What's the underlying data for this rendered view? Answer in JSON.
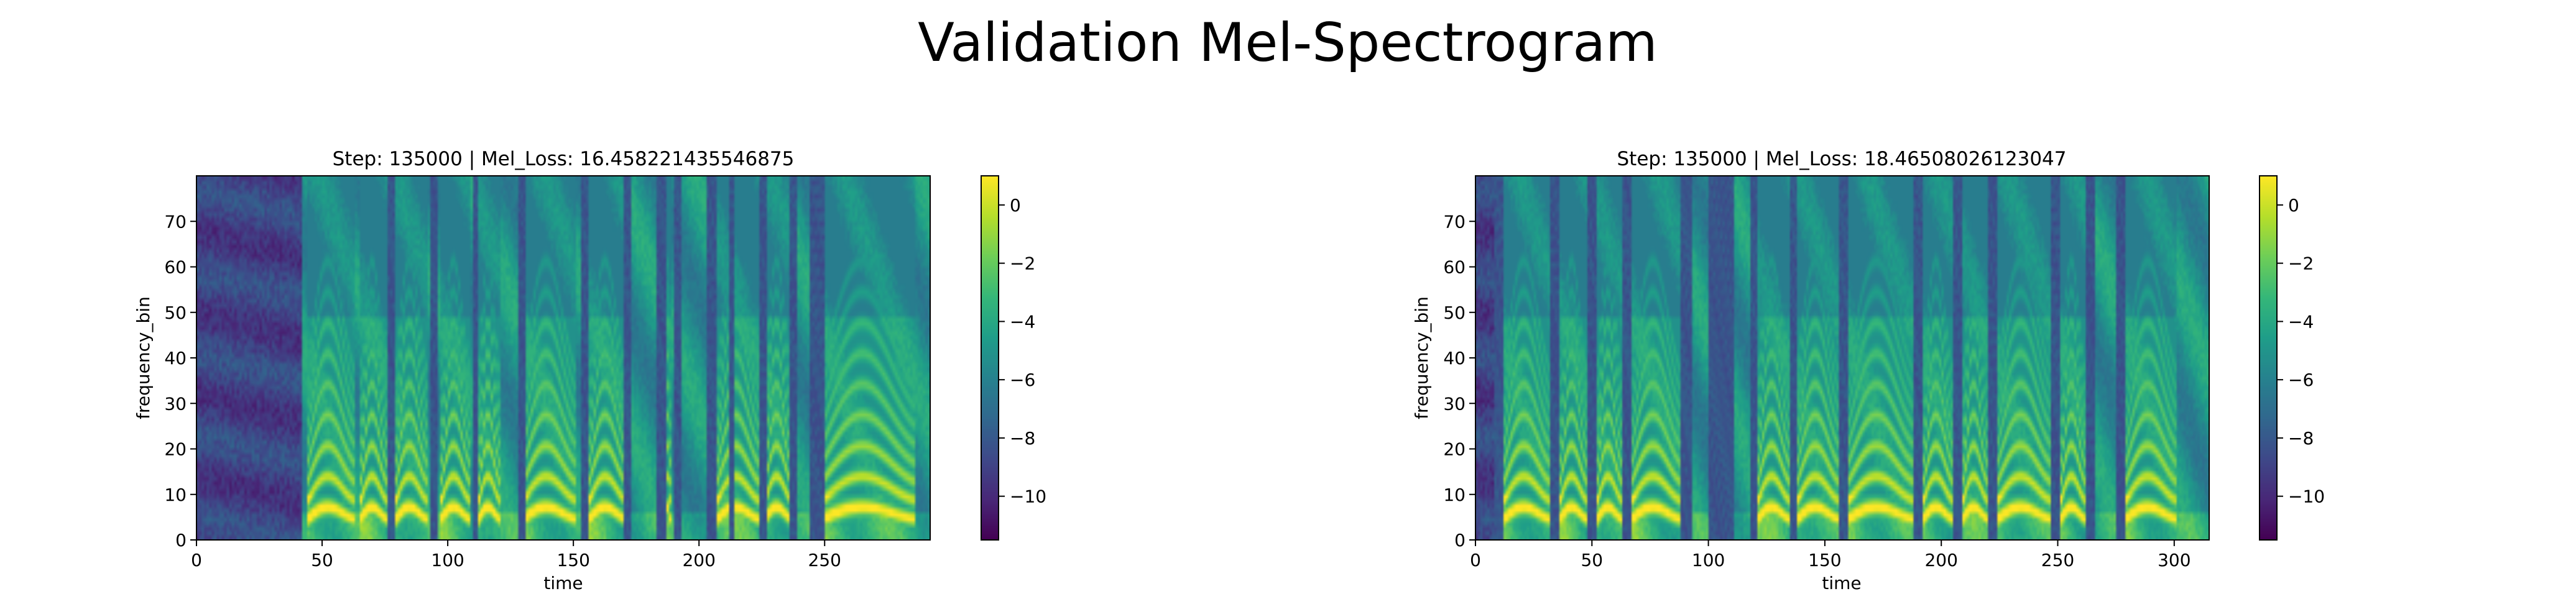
{
  "suptitle": "Validation Mel-Spectrogram",
  "colormap": "viridis",
  "colormap_stops": [
    "#440154",
    "#482878",
    "#3e4989",
    "#31688e",
    "#26828e",
    "#1f9e89",
    "#35b779",
    "#6ece58",
    "#b5de2b",
    "#fde725"
  ],
  "chart_data": [
    {
      "type": "heatmap",
      "title": "Step: 135000 | Mel_Loss: 16.458221435546875",
      "xlabel": "time",
      "ylabel": "frequency_bin",
      "xlim": [
        0,
        292
      ],
      "ylim": [
        0,
        80
      ],
      "xticks": [
        0,
        50,
        100,
        150,
        200,
        250
      ],
      "yticks": [
        0,
        10,
        20,
        30,
        40,
        50,
        60,
        70
      ],
      "colorbar": {
        "range": [
          -11.5,
          1
        ],
        "ticks": [
          0,
          -2,
          -4,
          -6,
          -8,
          -10
        ]
      },
      "silence_end": 42,
      "gaps": [
        [
          76,
          78
        ],
        [
          93,
          95
        ],
        [
          110,
          111
        ],
        [
          128,
          130
        ],
        [
          153,
          155
        ],
        [
          170,
          172
        ],
        [
          183,
          186
        ],
        [
          190,
          192
        ],
        [
          203,
          206
        ],
        [
          212,
          213
        ],
        [
          224,
          226
        ],
        [
          236,
          238
        ],
        [
          244,
          249
        ]
      ],
      "voiced": [
        [
          44,
          62
        ],
        [
          65,
          75
        ],
        [
          79,
          91
        ],
        [
          97,
          108
        ],
        [
          112,
          120
        ],
        [
          130,
          150
        ],
        [
          156,
          170
        ],
        [
          186,
          188
        ],
        [
          207,
          223
        ],
        [
          226,
          236
        ],
        [
          249,
          285
        ]
      ]
    },
    {
      "type": "heatmap",
      "title": "Step: 135000 | Mel_Loss: 18.46508026123047",
      "xlabel": "time",
      "ylabel": "frequency_bin",
      "xlim": [
        0,
        315
      ],
      "ylim": [
        0,
        80
      ],
      "xticks": [
        0,
        50,
        100,
        150,
        200,
        250,
        300
      ],
      "yticks": [
        0,
        10,
        20,
        30,
        40,
        50,
        60,
        70
      ],
      "colorbar": {
        "range": [
          -11.5,
          1
        ],
        "ticks": [
          0,
          -2,
          -4,
          -6,
          -8,
          -10
        ]
      },
      "silence_end": 8,
      "gaps": [
        [
          8,
          11
        ],
        [
          32,
          35
        ],
        [
          48,
          51
        ],
        [
          63,
          66
        ],
        [
          88,
          92
        ],
        [
          100,
          110
        ],
        [
          118,
          120
        ],
        [
          135,
          137
        ],
        [
          156,
          159
        ],
        [
          188,
          191
        ],
        [
          205,
          208
        ],
        [
          220,
          223
        ],
        [
          247,
          250
        ],
        [
          262,
          265
        ],
        [
          275,
          278
        ]
      ],
      "voiced": [
        [
          12,
          31
        ],
        [
          36,
          47
        ],
        [
          52,
          62
        ],
        [
          67,
          87
        ],
        [
          121,
          134
        ],
        [
          138,
          155
        ],
        [
          160,
          187
        ],
        [
          192,
          204
        ],
        [
          209,
          219
        ],
        [
          224,
          246
        ],
        [
          251,
          261
        ],
        [
          279,
          300
        ]
      ]
    }
  ]
}
